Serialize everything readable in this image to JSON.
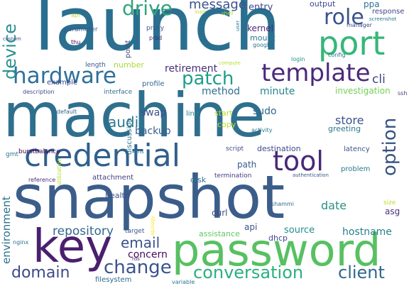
{
  "words": [
    {
      "text": "launch",
      "color": "#2a6f8f",
      "vertical": false
    },
    {
      "text": "machine",
      "color": "#2f6f8e",
      "vertical": false
    },
    {
      "text": "snapshot",
      "color": "#3b5d8a",
      "vertical": false
    },
    {
      "text": "password",
      "color": "#58c062",
      "vertical": false
    },
    {
      "text": "credential",
      "color": "#30608d",
      "vertical": false
    },
    {
      "text": "key",
      "color": "#4b1f6f",
      "vertical": false
    },
    {
      "text": "port",
      "color": "#35b778",
      "vertical": false
    },
    {
      "text": "template",
      "color": "#4a2a7a",
      "vertical": false
    },
    {
      "text": "hardware",
      "color": "#30719a",
      "vertical": false
    },
    {
      "text": "tool",
      "color": "#482878",
      "vertical": false
    },
    {
      "text": "role",
      "color": "#3b528b",
      "vertical": false
    },
    {
      "text": "device",
      "color": "#2a8f8f",
      "vertical": true
    },
    {
      "text": "option",
      "color": "#36547f",
      "vertical": true
    },
    {
      "text": "patch",
      "color": "#1f9e89",
      "vertical": false
    },
    {
      "text": "drive",
      "color": "#31a47a",
      "vertical": false
    },
    {
      "text": "conversation",
      "color": "#2ab07f",
      "vertical": false
    },
    {
      "text": "change",
      "color": "#3a538b",
      "vertical": false
    },
    {
      "text": "domain",
      "color": "#3e4a89",
      "vertical": false
    },
    {
      "text": "client",
      "color": "#31688e",
      "vertical": false
    },
    {
      "text": "audit",
      "color": "#2a788e",
      "vertical": false
    },
    {
      "text": "message",
      "color": "#3a528b",
      "vertical": false
    },
    {
      "text": "environment",
      "color": "#2c728e",
      "vertical": true
    },
    {
      "text": "email",
      "color": "#3b528b",
      "vertical": false
    },
    {
      "text": "date",
      "color": "#2c9185",
      "vertical": false
    },
    {
      "text": "repository",
      "color": "#31688e",
      "vertical": false
    },
    {
      "text": "cli",
      "color": "#414487",
      "vertical": false
    },
    {
      "text": "retirement",
      "color": "#472d7b",
      "vertical": false
    },
    {
      "text": "method",
      "color": "#2e6e8e",
      "vertical": false
    },
    {
      "text": "minute",
      "color": "#24868e",
      "vertical": false
    },
    {
      "text": "investigation",
      "color": "#74d055",
      "vertical": false
    },
    {
      "text": "store",
      "color": "#3b528b",
      "vertical": false
    },
    {
      "text": "backup",
      "color": "#355f8d",
      "vertical": false
    },
    {
      "text": "swap",
      "color": "#3b528b",
      "vertical": false
    },
    {
      "text": "sudo",
      "color": "#31688e",
      "vertical": false
    },
    {
      "text": "concern",
      "color": "#460a5d",
      "vertical": false
    },
    {
      "text": "hostname",
      "color": "#26818e",
      "vertical": false
    },
    {
      "text": "source",
      "color": "#218e8d",
      "vertical": false
    },
    {
      "text": "entry",
      "color": "#3e4989",
      "vertical": false
    },
    {
      "text": "kernel",
      "color": "#472878",
      "vertical": false
    },
    {
      "text": "mount",
      "color": "#2a788e",
      "vertical": false
    },
    {
      "text": "output",
      "color": "#3e4989",
      "vertical": false
    },
    {
      "text": "ppa",
      "color": "#2c738e",
      "vertical": false
    },
    {
      "text": "response",
      "color": "#3f4788",
      "vertical": false
    },
    {
      "text": "example",
      "color": "#3e4a89",
      "vertical": false
    },
    {
      "text": "length",
      "color": "#39568c",
      "vertical": false
    },
    {
      "text": "number",
      "color": "#a8db34",
      "vertical": false
    },
    {
      "text": "profile",
      "color": "#31688e",
      "vertical": false
    },
    {
      "text": "start",
      "color": "#b5de2b",
      "vertical": false
    },
    {
      "text": "copy",
      "color": "#bddf26",
      "vertical": false
    },
    {
      "text": "line",
      "color": "#25838e",
      "vertical": false
    },
    {
      "text": "greeting",
      "color": "#2a788e",
      "vertical": false
    },
    {
      "text": "latency",
      "color": "#3b528b",
      "vertical": false
    },
    {
      "text": "problem",
      "color": "#2a768e",
      "vertical": false
    },
    {
      "text": "destination",
      "color": "#3e4a89",
      "vertical": false
    },
    {
      "text": "path",
      "color": "#38598c",
      "vertical": false
    },
    {
      "text": "script",
      "color": "#3e4989",
      "vertical": false
    },
    {
      "text": "disk",
      "color": "#2d708e",
      "vertical": false
    },
    {
      "text": "termination",
      "color": "#443983",
      "vertical": false
    },
    {
      "text": "attachment",
      "color": "#433e85",
      "vertical": false
    },
    {
      "text": "health",
      "color": "#3b528b",
      "vertical": false
    },
    {
      "text": "curl",
      "color": "#3e4a89",
      "vertical": false
    },
    {
      "text": "api",
      "color": "#3b528b",
      "vertical": false
    },
    {
      "text": "dhcp",
      "color": "#404688",
      "vertical": false
    },
    {
      "text": "assistance",
      "color": "#5ec962",
      "vertical": false
    },
    {
      "text": "asg",
      "color": "#46327e",
      "vertical": false
    },
    {
      "text": "size",
      "color": "#b8de29",
      "vertical": false
    },
    {
      "text": "discussion",
      "color": "#2c738e",
      "vertical": true
    },
    {
      "text": "point",
      "color": "#3e4a89",
      "vertical": true
    },
    {
      "text": "interface",
      "color": "#2e6e8e",
      "vertical": false
    },
    {
      "text": "description",
      "color": "#3e4a89",
      "vertical": false
    },
    {
      "text": "default",
      "color": "#31688e",
      "vertical": false
    },
    {
      "text": "burstbalance",
      "color": "#440154",
      "vertical": false
    },
    {
      "text": "gmt",
      "color": "#2a788e",
      "vertical": false
    },
    {
      "text": "reference",
      "color": "#46327e",
      "vertical": false
    },
    {
      "text": "utilization",
      "color": "#b5de2b",
      "vertical": true
    },
    {
      "text": "kms",
      "color": "#2a788e",
      "vertical": false
    },
    {
      "text": "target",
      "color": "#39568c",
      "vertical": false
    },
    {
      "text": "apology",
      "color": "#fde725",
      "vertical": true
    },
    {
      "text": "rds",
      "color": "#472878",
      "vertical": false
    },
    {
      "text": "filesystem",
      "color": "#31688e",
      "vertical": false
    },
    {
      "text": "variable",
      "color": "#2a788e",
      "vertical": false
    },
    {
      "text": "nginx",
      "color": "#2d708e",
      "vertical": false
    },
    {
      "text": "authentication",
      "color": "#3b528b",
      "vertical": false
    },
    {
      "text": "activity",
      "color": "#2a788e",
      "vertical": false
    },
    {
      "text": "shammi",
      "color": "#2f6c8e",
      "vertical": false
    },
    {
      "text": "login",
      "color": "#21918c",
      "vertical": false
    },
    {
      "text": "config",
      "color": "#2c718e",
      "vertical": false
    },
    {
      "text": "ssh",
      "color": "#443983",
      "vertical": false
    },
    {
      "text": "compute",
      "color": "#b8de29",
      "vertical": false
    },
    {
      "text": "google",
      "color": "#2c728e",
      "vertical": false
    },
    {
      "text": "manager",
      "color": "#3e4a89",
      "vertical": false
    },
    {
      "text": "screenshot",
      "color": "#2a788e",
      "vertical": false
    },
    {
      "text": "parameter",
      "color": "#39568c",
      "vertical": false
    },
    {
      "text": "proxy",
      "color": "#3b528b",
      "vertical": false
    },
    {
      "text": "prod",
      "color": "#472878",
      "vertical": false
    },
    {
      "text": "load",
      "color": "#c2df23",
      "vertical": false
    },
    {
      "text": "shell",
      "color": "#b5de2b",
      "vertical": false
    },
    {
      "text": "apr",
      "color": "#b5de2b",
      "vertical": false
    },
    {
      "text": "thu",
      "color": "#440154",
      "vertical": false
    },
    {
      "text": "custom",
      "color": "#3b528b",
      "vertical": false
    },
    {
      "text": "user",
      "color": "#2a788e",
      "vertical": true
    }
  ]
}
